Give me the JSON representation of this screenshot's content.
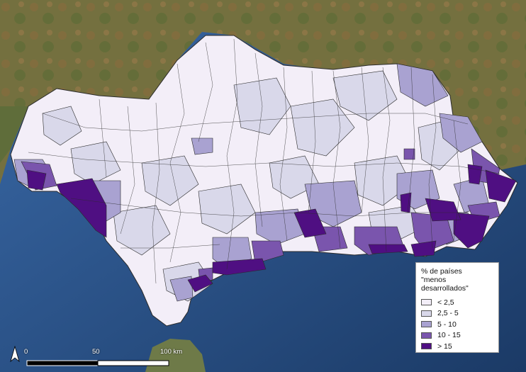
{
  "legend": {
    "title_line1": "% de países",
    "title_line2": "\"menos desarrollados\"",
    "classes": [
      {
        "label": "< 2,5",
        "color": "#f3eef8"
      },
      {
        "label": "2,5 - 5",
        "color": "#d9d8ea"
      },
      {
        "label": "5 - 10",
        "color": "#a9a2d1"
      },
      {
        "label": "10 - 15",
        "color": "#7a55ad"
      },
      {
        "label": "> 15",
        "color": "#4f0f82"
      }
    ]
  },
  "scale": {
    "ticks": [
      "0",
      "50",
      "100 km"
    ]
  },
  "colors": {
    "sea": "#254a7e",
    "land_background": "#6e6a3c",
    "border": "#2b2b2b"
  }
}
